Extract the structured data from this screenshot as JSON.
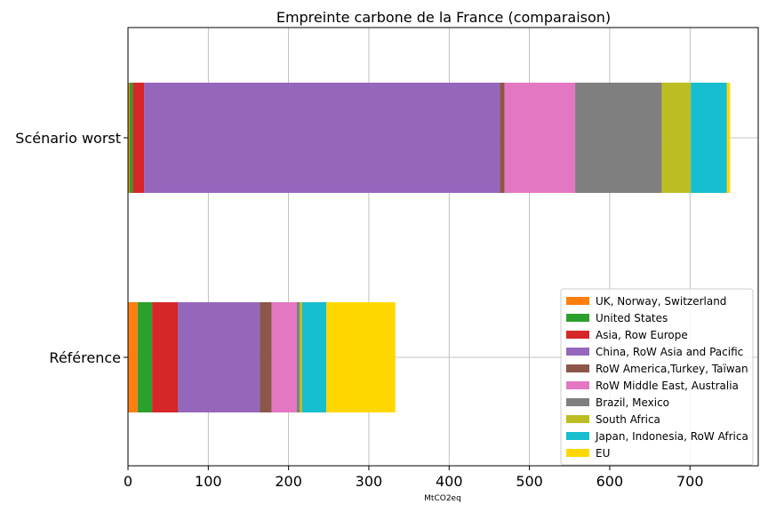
{
  "chart_data": {
    "type": "bar",
    "orientation": "horizontal",
    "stacked": true,
    "title": "Empreinte carbone de la France (comparaison)",
    "xlabel": "MtCO2eq",
    "ylabel": "",
    "xlim": [
      0,
      785
    ],
    "xticks": [
      0,
      100,
      200,
      300,
      400,
      500,
      600,
      700
    ],
    "grid": true,
    "legend_position": "lower-right",
    "categories": [
      "Référence",
      "Scénario worst"
    ],
    "series": [
      {
        "name": "UK, Norway, Switzerland",
        "color": "#ff7f0e",
        "values": [
          12,
          2
        ]
      },
      {
        "name": "United States",
        "color": "#2ca02c",
        "values": [
          18,
          4
        ]
      },
      {
        "name": "Asia, Row Europe",
        "color": "#d62728",
        "values": [
          32,
          14
        ]
      },
      {
        "name": "China, RoW Asia and Pacific",
        "color": "#9467bd",
        "values": [
          102,
          443
        ]
      },
      {
        "name": "RoW America,Turkey, Taïwan",
        "color": "#8c564b",
        "values": [
          15,
          6
        ]
      },
      {
        "name": "RoW Middle East, Australia",
        "color": "#e377c2",
        "values": [
          31,
          88
        ]
      },
      {
        "name": "Brazil, Mexico",
        "color": "#7f7f7f",
        "values": [
          4,
          108
        ]
      },
      {
        "name": "South Africa",
        "color": "#bcbd22",
        "values": [
          3,
          36
        ]
      },
      {
        "name": "Japan, Indonesia, RoW Africa",
        "color": "#17becf",
        "values": [
          30,
          45
        ]
      },
      {
        "name": "EU",
        "color": "#ffd700",
        "values": [
          86,
          4
        ]
      }
    ]
  }
}
